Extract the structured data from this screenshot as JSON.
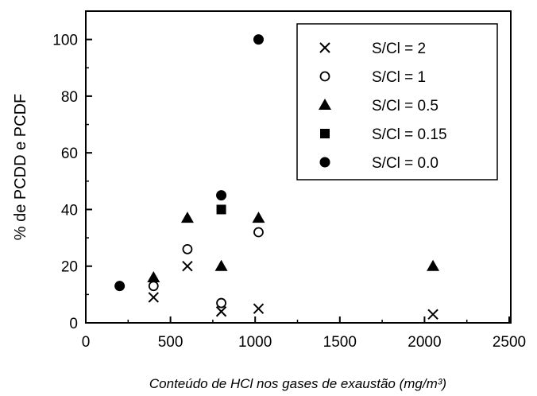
{
  "chart_data": {
    "type": "scatter",
    "title": "",
    "xlabel": "Conteúdo de HCl nos gases de exaustão (mg/m³)",
    "ylabel": "% de PCDD e PCDF",
    "xlim": [
      0,
      2500
    ],
    "ylim": [
      0,
      110
    ],
    "xticks": [
      0,
      500,
      1000,
      1500,
      2000,
      2500
    ],
    "yticks": [
      0,
      20,
      40,
      60,
      80,
      100
    ],
    "grid": false,
    "legend_position": "top-right",
    "series": [
      {
        "name": "S/Cl = 2",
        "marker": "x",
        "color": "#000000",
        "points": [
          [
            400,
            9
          ],
          [
            600,
            20
          ],
          [
            800,
            4
          ],
          [
            1020,
            5
          ],
          [
            2050,
            3
          ]
        ]
      },
      {
        "name": "S/Cl = 1",
        "marker": "open-circle",
        "color": "#000000",
        "points": [
          [
            400,
            13
          ],
          [
            600,
            26
          ],
          [
            800,
            7
          ],
          [
            1020,
            32
          ]
        ]
      },
      {
        "name": "S/Cl = 0.5",
        "marker": "triangle",
        "color": "#000000",
        "points": [
          [
            400,
            16
          ],
          [
            600,
            37
          ],
          [
            800,
            20
          ],
          [
            1020,
            37
          ],
          [
            2050,
            20
          ]
        ]
      },
      {
        "name": "S/Cl = 0.15",
        "marker": "square",
        "color": "#000000",
        "points": [
          [
            800,
            40
          ]
        ]
      },
      {
        "name": "S/Cl = 0.0",
        "marker": "filled-circle",
        "color": "#000000",
        "points": [
          [
            200,
            13
          ],
          [
            800,
            45
          ],
          [
            1020,
            100
          ]
        ]
      }
    ]
  }
}
